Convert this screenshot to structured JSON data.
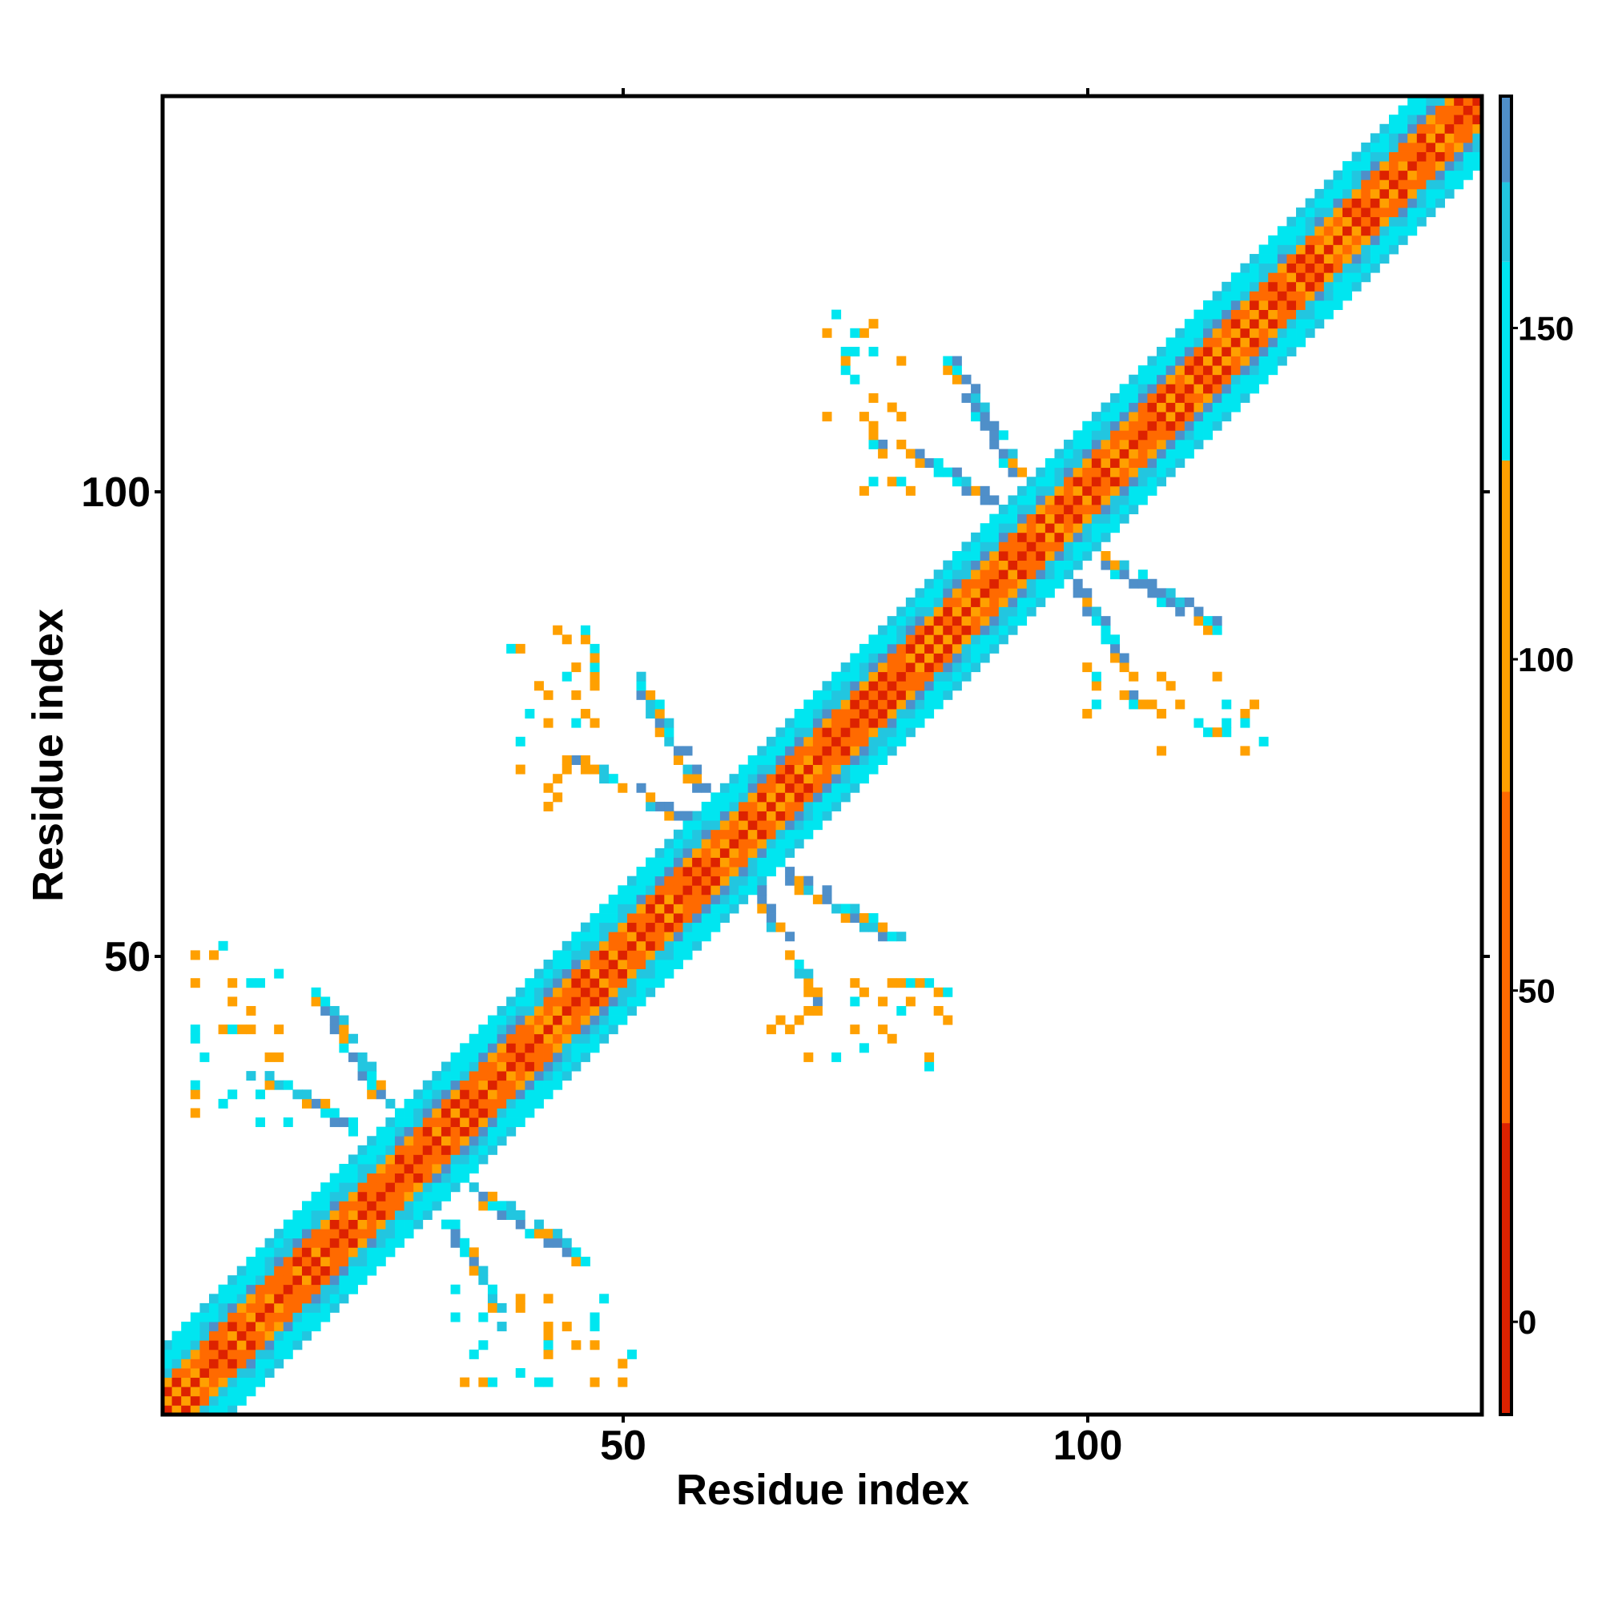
{
  "chart_data": {
    "type": "heatmap",
    "title": "",
    "xlabel": "Residue index",
    "ylabel": "Residue index",
    "xlim": [
      0.5,
      142.5
    ],
    "ylim": [
      0.5,
      142.5
    ],
    "x_ticks": [
      "50",
      "100"
    ],
    "y_ticks": [
      "50",
      "100"
    ],
    "colorbar": {
      "range": [
        -14,
        185
      ],
      "ticks": [
        "0",
        "50",
        "100",
        "150"
      ],
      "segments": [
        {
          "from": -14,
          "to": 30,
          "color": "#dd2200"
        },
        {
          "from": 30,
          "to": 80,
          "color": "#ff6a00"
        },
        {
          "from": 80,
          "to": 130,
          "color": "#ffa000"
        },
        {
          "from": 130,
          "to": 160,
          "color": "#00e6f0"
        },
        {
          "from": 160,
          "to": 172,
          "color": "#22c6e0"
        },
        {
          "from": 172,
          "to": 185,
          "color": "#4f8fc9"
        }
      ]
    },
    "cell_colors": [
      "#dd2200",
      "#ff6a00",
      "#ffa000",
      "#00e6f0",
      "#22c6e0",
      "#4f8fc9"
    ],
    "diagonal_band": {
      "main_band_offset_max": 7,
      "axis": "i = j"
    },
    "domains": [
      {
        "center": [
          27.5,
          27.5
        ],
        "repeat": 1
      },
      {
        "center": [
          61.5,
          61.5
        ],
        "repeat": 2
      },
      {
        "center": [
          95.5,
          95.5
        ],
        "repeat": 3
      }
    ],
    "symmetric": true
  }
}
